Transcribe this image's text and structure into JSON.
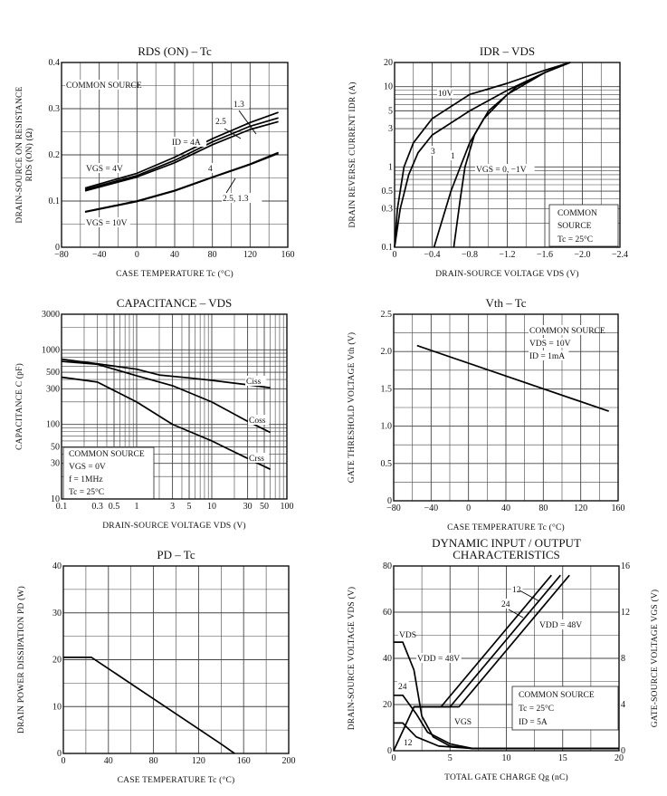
{
  "chart_data": [
    {
      "type": "line",
      "title": "RDS (ON) – Tc",
      "xlabel": "CASE TEMPERATURE   Tc   (°C)",
      "ylabel": "DRAIN-SOURCE ON RESISTANCE",
      "ylabel_sub": "RDS (ON)   (Ω)",
      "xscale": "linear",
      "yscale": "linear",
      "xlim": [
        -80,
        160
      ],
      "ylim": [
        0,
        0.4
      ],
      "xticks": [
        -80,
        -40,
        0,
        40,
        80,
        120,
        160
      ],
      "xtick_labels": [
        "−80",
        "−40",
        "0",
        "40",
        "80",
        "120",
        "160"
      ],
      "yticks": [
        0,
        0.1,
        0.2,
        0.3,
        0.4
      ],
      "ytick_labels": [
        "0",
        "0.1",
        "0.2",
        "0.3",
        "0.4"
      ],
      "grid": true,
      "series": [
        {
          "name": "4",
          "x": [
            -55,
            0,
            40,
            80,
            120,
            150
          ],
          "y": [
            0.128,
            0.16,
            0.195,
            0.235,
            0.27,
            0.292
          ]
        },
        {
          "name": "2.5",
          "x": [
            -55,
            0,
            40,
            80,
            120,
            150
          ],
          "y": [
            0.125,
            0.155,
            0.188,
            0.228,
            0.262,
            0.28
          ]
        },
        {
          "name": "1.3",
          "x": [
            -55,
            0,
            40,
            80,
            120,
            150
          ],
          "y": [
            0.122,
            0.152,
            0.183,
            0.222,
            0.255,
            0.272
          ]
        },
        {
          "name": "4",
          "x": [
            -55,
            0,
            40,
            80,
            120,
            150
          ],
          "y": [
            0.077,
            0.1,
            0.123,
            0.152,
            0.18,
            0.205
          ]
        },
        {
          "name": "2.5, 1.3",
          "x": [
            -55,
            0,
            40,
            80,
            120,
            150
          ],
          "y": [
            0.076,
            0.099,
            0.122,
            0.151,
            0.179,
            0.203
          ]
        }
      ],
      "annotations": [
        "COMMON SOURCE",
        "ID = 4A",
        "VGS = 4V",
        "VGS = 10V",
        "1.3",
        "2.5",
        "4",
        "2.5, 1.3"
      ]
    },
    {
      "type": "line",
      "title": "IDR – VDS",
      "xlabel": "DRAIN-SOURCE VOLTAGE   VDS   (V)",
      "ylabel": "DRAIN REVERSE CURRENT   IDR   (A)",
      "xscale": "linear",
      "yscale": "log",
      "xlim": [
        0,
        -2.4
      ],
      "ylim": [
        0.1,
        20
      ],
      "xticks": [
        0,
        -0.4,
        -0.8,
        -1.2,
        -1.6,
        -2.0,
        -2.4
      ],
      "xtick_labels": [
        "0",
        "−0.4",
        "−0.8",
        "−1.2",
        "−1.6",
        "−2.0",
        "−2.4"
      ],
      "yticks": [
        0.1,
        0.3,
        0.5,
        1,
        3,
        5,
        10,
        20
      ],
      "ytick_labels": [
        "0.1",
        "0.3",
        "0.5",
        "1",
        "3",
        "5",
        "10",
        "20"
      ],
      "grid": true,
      "series": [
        {
          "name": "10V",
          "x": [
            0,
            -0.03,
            -0.1,
            -0.2,
            -0.4,
            -0.8,
            -1.2,
            -1.6,
            -1.87
          ],
          "y": [
            0.1,
            0.3,
            1,
            2,
            4,
            8,
            11,
            16,
            20
          ]
        },
        {
          "name": "3",
          "x": [
            0,
            -0.06,
            -0.15,
            -0.25,
            -0.4,
            -0.8,
            -1.2,
            -1.6,
            -1.87
          ],
          "y": [
            0.1,
            0.3,
            0.8,
            1.5,
            2.5,
            5,
            9,
            15,
            20
          ]
        },
        {
          "name": "1",
          "x": [
            -0.42,
            -0.6,
            -0.7,
            -0.8,
            -0.95,
            -1.2,
            -1.6,
            -1.87
          ],
          "y": [
            0.1,
            0.5,
            1,
            2,
            4,
            8,
            15,
            20
          ]
        },
        {
          "name": "VGS = 0, −1V",
          "x": [
            -0.63,
            -0.7,
            -0.75,
            -0.85,
            -1.0,
            -1.3,
            -1.6,
            -1.87
          ],
          "y": [
            0.1,
            0.4,
            1,
            2.5,
            5,
            10,
            15,
            20
          ]
        }
      ],
      "annotations": [
        "10V",
        "3",
        "1",
        "VGS = 0, −1V",
        "COMMON",
        "SOURCE",
        "Tc = 25°C"
      ]
    },
    {
      "type": "line",
      "title": "CAPACITANCE – VDS",
      "xlabel": "DRAIN-SOURCE VOLTAGE   VDS   (V)",
      "ylabel": "CAPACITANCE   C   (pF)",
      "xscale": "log",
      "yscale": "log",
      "xlim": [
        0.1,
        100
      ],
      "ylim": [
        10,
        3000
      ],
      "xticks": [
        0.1,
        0.3,
        0.5,
        1,
        3,
        5,
        10,
        30,
        50,
        100
      ],
      "xtick_labels": [
        "0.1",
        "0.3",
        "0.5",
        "1",
        "3",
        "5",
        "10",
        "30",
        "50",
        "100"
      ],
      "yticks": [
        10,
        30,
        50,
        100,
        300,
        500,
        1000,
        3000
      ],
      "ytick_labels": [
        "10",
        "30",
        "50",
        "100",
        "300",
        "500",
        "1000",
        "3000"
      ],
      "grid": true,
      "series": [
        {
          "name": "Ciss",
          "x": [
            0.1,
            0.3,
            1,
            2,
            5,
            10,
            30,
            60
          ],
          "y": [
            750,
            650,
            550,
            460,
            420,
            390,
            340,
            310
          ]
        },
        {
          "name": "Coss",
          "x": [
            0.1,
            0.3,
            1,
            3,
            10,
            30,
            60
          ],
          "y": [
            700,
            640,
            450,
            330,
            200,
            110,
            78
          ]
        },
        {
          "name": "Crss",
          "x": [
            0.1,
            0.3,
            1,
            3,
            10,
            30,
            60
          ],
          "y": [
            430,
            370,
            200,
            100,
            60,
            35,
            25
          ]
        }
      ],
      "annotations": [
        "Ciss",
        "Coss",
        "Crss",
        "COMMON SOURCE",
        "VGS = 0V",
        "f = 1MHz",
        "Tc = 25°C"
      ]
    },
    {
      "type": "line",
      "title": "Vth – Tc",
      "xlabel": "CASE TEMPERATURE   Tc   (°C)",
      "ylabel": "GATE THRESHOLD VOLTAGE   Vth   (V)",
      "xscale": "linear",
      "yscale": "linear",
      "xlim": [
        -80,
        160
      ],
      "ylim": [
        0,
        2.5
      ],
      "xticks": [
        -80,
        -40,
        0,
        40,
        80,
        120,
        160
      ],
      "xtick_labels": [
        "−80",
        "−40",
        "0",
        "40",
        "80",
        "120",
        "160"
      ],
      "yticks": [
        0,
        0.5,
        1.0,
        1.5,
        2.0,
        2.5
      ],
      "ytick_labels": [
        "0",
        "0.5",
        "1.0",
        "1.5",
        "2.0",
        "2.5"
      ],
      "grid": true,
      "series": [
        {
          "x": [
            -55,
            150
          ],
          "y": [
            2.08,
            1.2
          ]
        }
      ],
      "annotations": [
        "COMMON SOURCE",
        "VDS = 10V",
        "ID = 1mA"
      ]
    },
    {
      "type": "line",
      "title": "PD – Tc",
      "xlabel": "CASE TEMPERATURE   Tc   (°C)",
      "ylabel": "DRAIN POWER DISSIPATION   PD   (W)",
      "xscale": "linear",
      "yscale": "linear",
      "xlim": [
        0,
        200
      ],
      "ylim": [
        0,
        40
      ],
      "xticks": [
        0,
        40,
        80,
        120,
        160,
        200
      ],
      "xtick_labels": [
        "0",
        "40",
        "80",
        "120",
        "160",
        "200"
      ],
      "yticks": [
        0,
        10,
        20,
        30,
        40
      ],
      "ytick_labels": [
        "0",
        "10",
        "20",
        "30",
        "40"
      ],
      "grid": true,
      "series": [
        {
          "x": [
            0,
            25,
            140,
            152
          ],
          "y": [
            20.5,
            20.5,
            2,
            0
          ]
        }
      ],
      "annotations": []
    },
    {
      "type": "line",
      "title": "DYNAMIC INPUT / OUTPUT",
      "title2": "CHARACTERISTICS",
      "xlabel": "TOTAL GATE CHARGE   Qg   (nC)",
      "ylabel": "DRAIN-SOURCE VOLTAGE   VDS   (V)",
      "ylabel_right": "GATE-SOURCE VOLTAGE   VGS   (V)",
      "xscale": "linear",
      "yscale": "linear",
      "xlim": [
        0,
        20
      ],
      "ylim": [
        0,
        80
      ],
      "ylim_right": [
        0,
        16
      ],
      "xticks": [
        0,
        5,
        10,
        15,
        20
      ],
      "xtick_labels": [
        "0",
        "5",
        "10",
        "15",
        "20"
      ],
      "yticks": [
        0,
        20,
        40,
        60,
        80
      ],
      "ytick_labels": [
        "0",
        "20",
        "40",
        "60",
        "80"
      ],
      "yticks_right": [
        0,
        4,
        8,
        12,
        16
      ],
      "ytick_labels_right": [
        "0",
        "4",
        "8",
        "12",
        "16"
      ],
      "grid": true,
      "series": [
        {
          "name": "VDD = 48V",
          "axis": "left",
          "x": [
            0,
            0.8,
            1.8,
            2.5,
            3.5,
            5,
            7,
            20
          ],
          "y": [
            47,
            47,
            35,
            15,
            6,
            2,
            1,
            1
          ]
        },
        {
          "name": "24",
          "axis": "left",
          "x": [
            0,
            0.8,
            2,
            3,
            5,
            7,
            20
          ],
          "y": [
            24,
            24,
            16,
            8,
            3,
            1,
            1
          ]
        },
        {
          "name": "12",
          "axis": "left",
          "x": [
            0,
            0.8,
            2,
            4,
            7,
            20
          ],
          "y": [
            12,
            12,
            6,
            2,
            1,
            1
          ]
        },
        {
          "name": "12",
          "axis": "right",
          "x": [
            0,
            1.8,
            4.2,
            14.0
          ],
          "y": [
            0,
            3.8,
            3.8,
            15.2
          ]
        },
        {
          "name": "24",
          "axis": "right",
          "x": [
            1.8,
            5.0,
            14.8
          ],
          "y": [
            3.8,
            3.8,
            15.2
          ]
        },
        {
          "name": "VDD = 48V",
          "axis": "right",
          "x": [
            1.8,
            5.8,
            15.6
          ],
          "y": [
            3.8,
            3.8,
            15.2
          ]
        }
      ],
      "annotations": [
        "VDS",
        "VDD = 48V",
        "24",
        "12",
        "VGS",
        "12",
        "24",
        "VDD = 48V",
        "COMMON SOURCE",
        "Tc = 25°C",
        "ID = 5A"
      ]
    }
  ]
}
